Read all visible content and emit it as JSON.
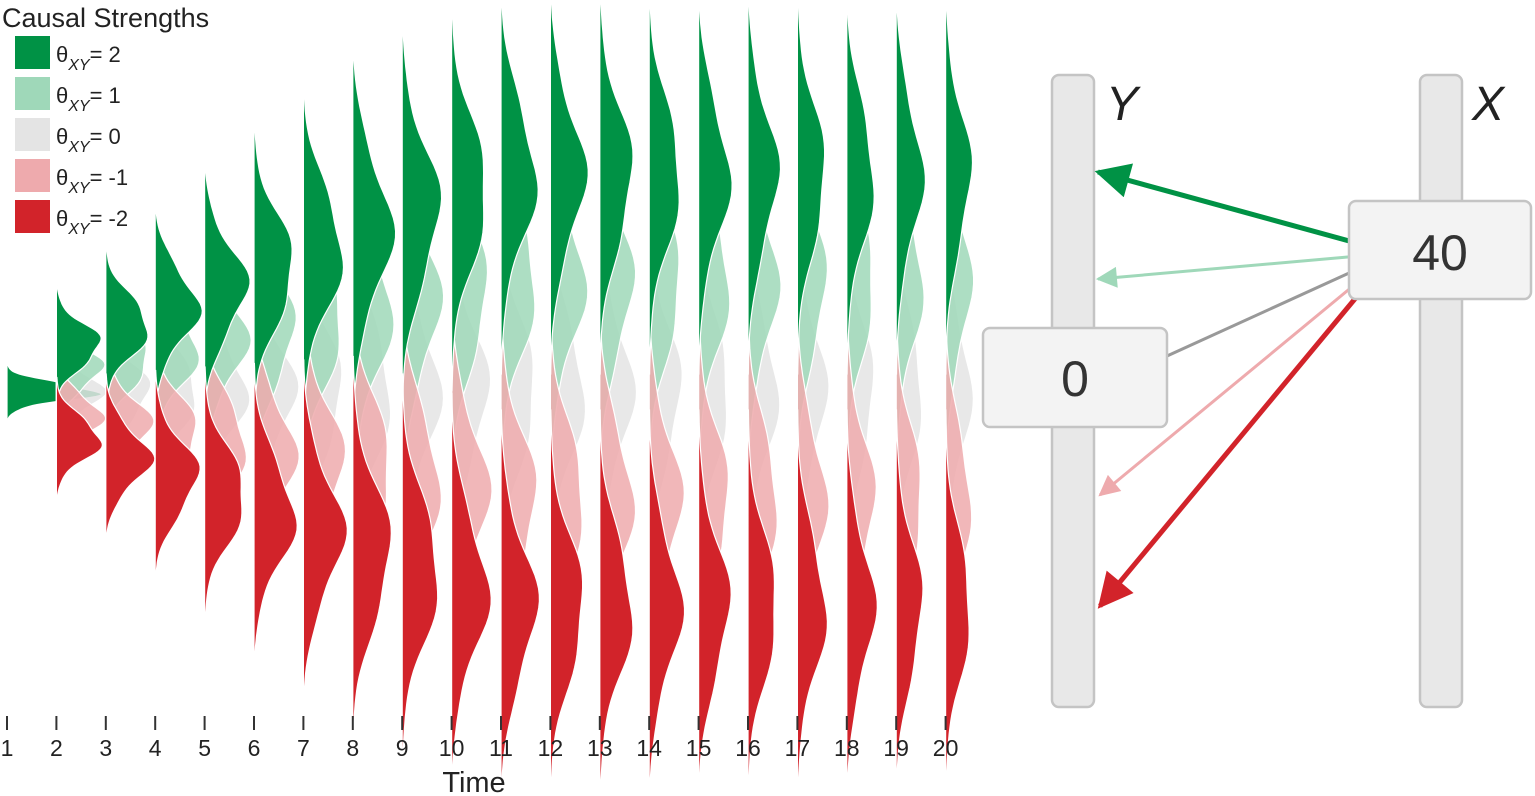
{
  "legend": {
    "title": "Causal Strengths",
    "symbol": "θ",
    "subscript": "XY",
    "items": [
      {
        "value": "2",
        "color": "#009245"
      },
      {
        "value": "1",
        "color": "#9fd8b9"
      },
      {
        "value": "0",
        "color": "#e4e4e4"
      },
      {
        "value": "-1",
        "color": "#eeaaad"
      },
      {
        "value": "-2",
        "color": "#d2232a"
      }
    ]
  },
  "time_axis": {
    "label": "Time",
    "ticks": [
      "1",
      "2",
      "3",
      "4",
      "5",
      "6",
      "7",
      "8",
      "9",
      "10",
      "11",
      "12",
      "13",
      "14",
      "15",
      "16",
      "17",
      "18",
      "19",
      "20"
    ]
  },
  "sliders": {
    "y": {
      "label": "Y",
      "value": "0"
    },
    "x": {
      "label": "X",
      "value": "40"
    }
  },
  "arrows": [
    {
      "strength": "2",
      "color": "#009245"
    },
    {
      "strength": "1",
      "color": "#9fd8b9"
    },
    {
      "strength": "0",
      "color": "#999999"
    },
    {
      "strength": "-1",
      "color": "#eeaaad"
    },
    {
      "strength": "-2",
      "color": "#d2232a"
    }
  ]
}
